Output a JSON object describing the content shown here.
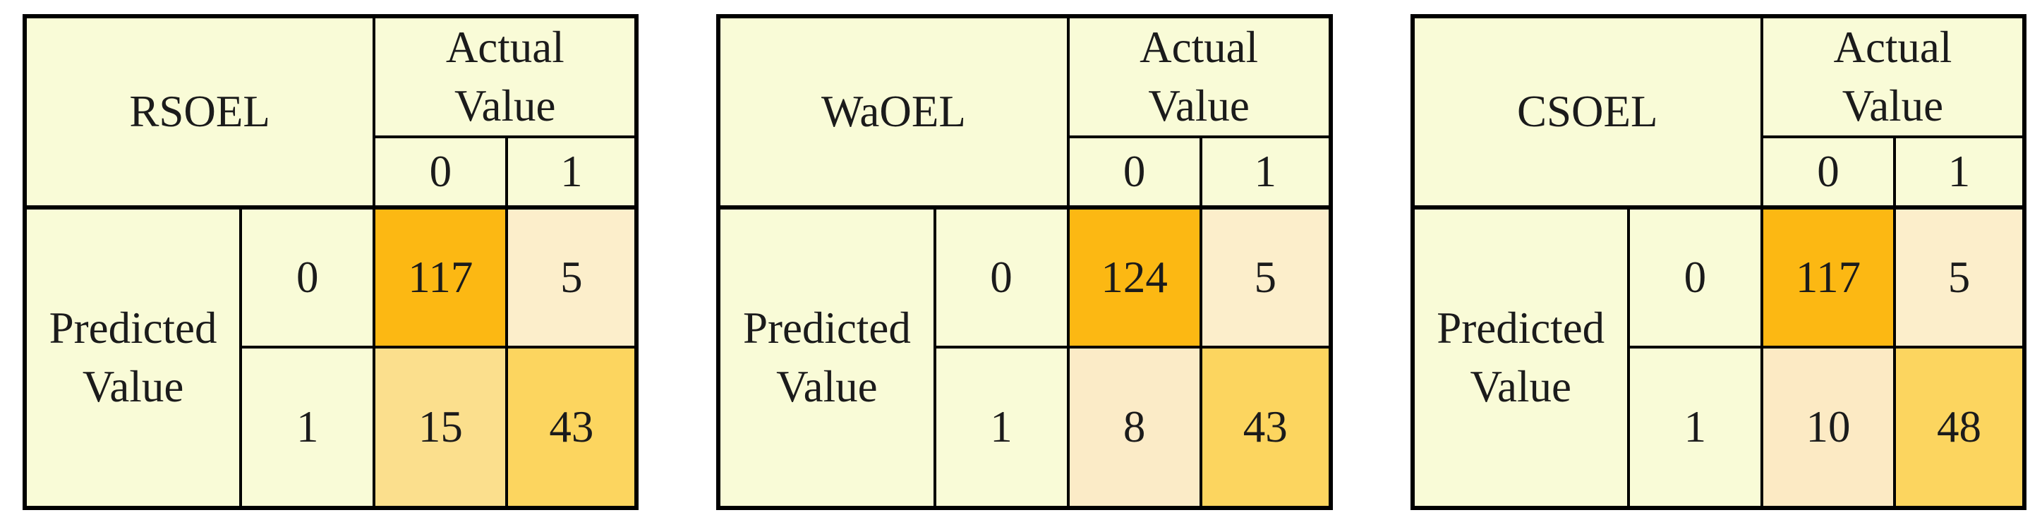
{
  "figure": {
    "background": "#ffffff",
    "text_color": "#1b1b1b",
    "border_color": "#000000",
    "base_cell_color": "#f9fbd7"
  },
  "chart_data": [
    {
      "type": "heatmap",
      "title": "RSOEL",
      "x_axis_label": "Actual Value",
      "y_axis_label": "Predicted Value",
      "x_categories": [
        "0",
        "1"
      ],
      "y_categories": [
        "0",
        "1"
      ],
      "values": [
        [
          117,
          5
        ],
        [
          15,
          43
        ]
      ],
      "cell_colors": [
        [
          "#fcb813",
          "#fceecb"
        ],
        [
          "#fbdf8d",
          "#fcd55f"
        ]
      ]
    },
    {
      "type": "heatmap",
      "title": "WaOEL",
      "x_axis_label": "Actual Value",
      "y_axis_label": "Predicted Value",
      "x_categories": [
        "0",
        "1"
      ],
      "y_categories": [
        "0",
        "1"
      ],
      "values": [
        [
          124,
          5
        ],
        [
          8,
          43
        ]
      ],
      "cell_colors": [
        [
          "#fcb813",
          "#fceecb"
        ],
        [
          "#fbebc7",
          "#fcd55f"
        ]
      ]
    },
    {
      "type": "heatmap",
      "title": "CSOEL",
      "x_axis_label": "Actual Value",
      "y_axis_label": "Predicted Value",
      "x_categories": [
        "0",
        "1"
      ],
      "y_categories": [
        "0",
        "1"
      ],
      "values": [
        [
          117,
          5
        ],
        [
          10,
          48
        ]
      ],
      "cell_colors": [
        [
          "#fcb813",
          "#fceecb"
        ],
        [
          "#fceac4",
          "#fcd55f"
        ]
      ]
    }
  ]
}
